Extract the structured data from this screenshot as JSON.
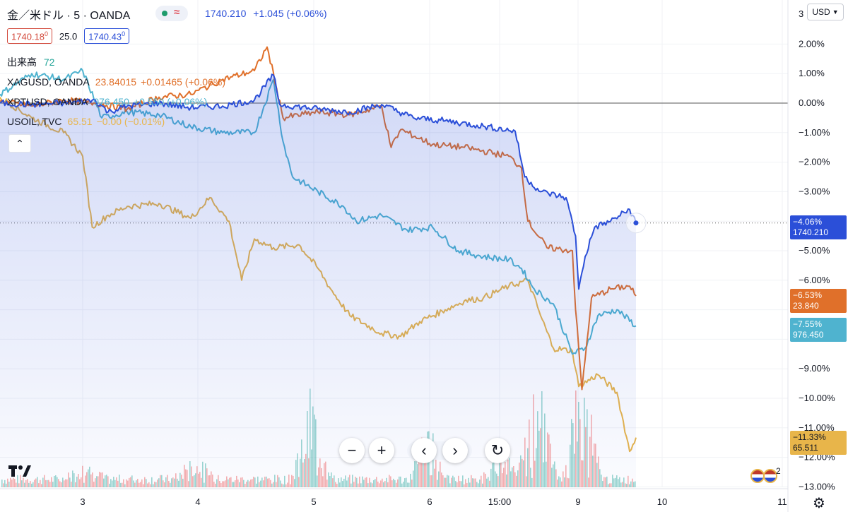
{
  "header": {
    "symbol": "金／米ドル · 5 · OANDA",
    "last_price": "1740.210",
    "change": "+1.045 (+0.06%)",
    "bid": "1740.18",
    "bid_sup": "0",
    "spread": "25.0",
    "ask": "1740.43",
    "ask_sup": "0",
    "volume_label": "出来高",
    "volume_value": "72"
  },
  "legend": [
    {
      "name": "XAGUSD, OANDA",
      "value": "23.84015",
      "change": "+0.01465 (+0.06%)",
      "color": "#e0702a"
    },
    {
      "name": "XPTUSD, OANDA",
      "value": "976.450",
      "change": "+0.550 (+0.06%)",
      "color": "#4fb3cf"
    },
    {
      "name": "USOIL, TVC",
      "value": "65.51",
      "change": "−0.00 (−0.01%)",
      "color": "#e8b54a"
    }
  ],
  "currency_button": "USD",
  "x_ticks": [
    {
      "label": "3"
    },
    {
      "label": "4"
    },
    {
      "label": "5"
    },
    {
      "label": "6"
    },
    {
      "label": "15:00"
    },
    {
      "label": "9"
    },
    {
      "label": "10"
    },
    {
      "label": "11"
    }
  ],
  "y_ticks": [
    "3",
    "2.00%",
    "1.00%",
    "0.00%",
    "−1.00%",
    "−2.00%",
    "−3.00%",
    "−5.00%",
    "−6.00%",
    "−9.00%",
    "−10.00%",
    "−11.00%",
    "−12.00%",
    "−13.00%"
  ],
  "price_tags": [
    {
      "pct": "−4.06%",
      "price": "1740.210",
      "color": "#2b4fd8"
    },
    {
      "pct": "−6.53%",
      "price": "23.840",
      "color": "#e0702a"
    },
    {
      "pct": "−7.55%",
      "price": "976.450",
      "color": "#4fb3cf"
    },
    {
      "pct": "−11.33%",
      "price": "65.511",
      "color": "#e8b54a"
    }
  ],
  "chart_data": {
    "type": "line",
    "y_unit": "percent",
    "ylim": [
      -13,
      3
    ],
    "grid": true,
    "x_categories": [
      "3",
      "4",
      "5",
      "6",
      "15:00",
      "9",
      "10",
      "11"
    ],
    "series": [
      {
        "name": "金／米ドル",
        "color": "#2b4fd8",
        "area": true,
        "points": [
          [
            0,
            0.0
          ],
          [
            0.5,
            -0.05
          ],
          [
            1.0,
            0.0
          ],
          [
            1.5,
            0.1
          ],
          [
            1.7,
            -0.3
          ],
          [
            2.0,
            -0.1
          ],
          [
            2.5,
            0.0
          ],
          [
            3.0,
            -0.15
          ],
          [
            3.5,
            -0.1
          ],
          [
            4.0,
            0.1
          ],
          [
            4.3,
            0.95
          ],
          [
            4.4,
            -0.05
          ],
          [
            5.0,
            -0.2
          ],
          [
            5.5,
            -0.3
          ],
          [
            6.0,
            -0.05
          ],
          [
            6.5,
            -0.5
          ],
          [
            7.0,
            -0.6
          ],
          [
            7.5,
            -0.75
          ],
          [
            8.1,
            -0.95
          ],
          [
            8.25,
            -2.5
          ],
          [
            8.5,
            -3.0
          ],
          [
            8.9,
            -3.2
          ],
          [
            9.05,
            -4.5
          ],
          [
            9.1,
            -6.3
          ],
          [
            9.2,
            -5.2
          ],
          [
            9.35,
            -4.2
          ],
          [
            9.6,
            -4.0
          ],
          [
            9.9,
            -3.6
          ],
          [
            10.0,
            -4.06
          ]
        ]
      },
      {
        "name": "XAGUSD, OANDA",
        "color": "#e0702a",
        "points": [
          [
            0,
            0.05
          ],
          [
            0.5,
            -0.1
          ],
          [
            1.0,
            0.1
          ],
          [
            1.5,
            0.0
          ],
          [
            2.0,
            -0.2
          ],
          [
            2.5,
            0.2
          ],
          [
            3.0,
            0.3
          ],
          [
            3.5,
            0.8
          ],
          [
            4.0,
            1.1
          ],
          [
            4.2,
            1.9
          ],
          [
            4.35,
            0.5
          ],
          [
            4.45,
            -0.5
          ],
          [
            5.0,
            -0.3
          ],
          [
            5.5,
            -0.4
          ],
          [
            6.0,
            -0.1
          ],
          [
            6.15,
            -1.5
          ],
          [
            6.3,
            -0.9
          ],
          [
            6.8,
            -1.4
          ],
          [
            7.3,
            -1.5
          ],
          [
            8.0,
            -1.8
          ],
          [
            8.2,
            -2.2
          ],
          [
            8.3,
            -4.0
          ],
          [
            8.6,
            -4.9
          ],
          [
            9.0,
            -5.0
          ],
          [
            9.05,
            -7.0
          ],
          [
            9.15,
            -9.7
          ],
          [
            9.3,
            -6.6
          ],
          [
            9.6,
            -6.3
          ],
          [
            9.9,
            -6.2
          ],
          [
            10.0,
            -6.53
          ]
        ]
      },
      {
        "name": "XPTUSD, OANDA",
        "color": "#4fb3cf",
        "points": [
          [
            0,
            0.3
          ],
          [
            0.5,
            1.0
          ],
          [
            1.0,
            0.8
          ],
          [
            1.3,
            1.1
          ],
          [
            1.6,
            -0.5
          ],
          [
            2.0,
            -0.3
          ],
          [
            2.5,
            -0.4
          ],
          [
            3.0,
            -0.8
          ],
          [
            3.5,
            -1.0
          ],
          [
            4.0,
            -1.0
          ],
          [
            4.3,
            0.8
          ],
          [
            4.45,
            -1.3
          ],
          [
            4.6,
            -2.5
          ],
          [
            5.0,
            -3.0
          ],
          [
            5.4,
            -3.5
          ],
          [
            5.6,
            -4.0
          ],
          [
            6.0,
            -3.8
          ],
          [
            6.4,
            -4.3
          ],
          [
            6.8,
            -4.2
          ],
          [
            7.2,
            -5.0
          ],
          [
            7.6,
            -5.2
          ],
          [
            8.0,
            -5.3
          ],
          [
            8.2,
            -5.6
          ],
          [
            8.4,
            -6.3
          ],
          [
            8.7,
            -6.8
          ],
          [
            9.0,
            -8.5
          ],
          [
            9.2,
            -8.3
          ],
          [
            9.4,
            -7.2
          ],
          [
            9.7,
            -7.0
          ],
          [
            10.0,
            -7.55
          ]
        ]
      },
      {
        "name": "USOIL, TVC",
        "color": "#e8b54a",
        "points": [
          [
            0,
            0.2
          ],
          [
            0.5,
            -0.5
          ],
          [
            1.0,
            -1.0
          ],
          [
            1.3,
            -1.8
          ],
          [
            1.45,
            -4.2
          ],
          [
            1.7,
            -3.8
          ],
          [
            2.0,
            -3.5
          ],
          [
            2.5,
            -3.4
          ],
          [
            3.0,
            -3.9
          ],
          [
            3.3,
            -3.2
          ],
          [
            3.6,
            -4.0
          ],
          [
            3.8,
            -6.0
          ],
          [
            4.0,
            -4.6
          ],
          [
            4.3,
            -4.9
          ],
          [
            4.7,
            -4.8
          ],
          [
            5.0,
            -5.6
          ],
          [
            5.2,
            -6.3
          ],
          [
            5.5,
            -7.2
          ],
          [
            6.0,
            -7.8
          ],
          [
            6.3,
            -7.9
          ],
          [
            6.6,
            -7.4
          ],
          [
            7.0,
            -7.0
          ],
          [
            7.3,
            -6.7
          ],
          [
            7.6,
            -6.6
          ],
          [
            8.0,
            -6.2
          ],
          [
            8.3,
            -6.0
          ],
          [
            8.5,
            -7.2
          ],
          [
            8.7,
            -8.3
          ],
          [
            9.0,
            -8.4
          ],
          [
            9.1,
            -9.6
          ],
          [
            9.4,
            -9.2
          ],
          [
            9.7,
            -9.8
          ],
          [
            9.9,
            -11.8
          ],
          [
            10.0,
            -11.33
          ]
        ]
      }
    ]
  },
  "toolbar": [
    {
      "name": "zoom-out",
      "glyph": "−"
    },
    {
      "name": "zoom-in",
      "glyph": "+"
    },
    {
      "name": "scroll-left",
      "glyph": "‹"
    },
    {
      "name": "scroll-right",
      "glyph": "›"
    },
    {
      "name": "reset",
      "glyph": "↻"
    }
  ],
  "calendar_badge": "2"
}
